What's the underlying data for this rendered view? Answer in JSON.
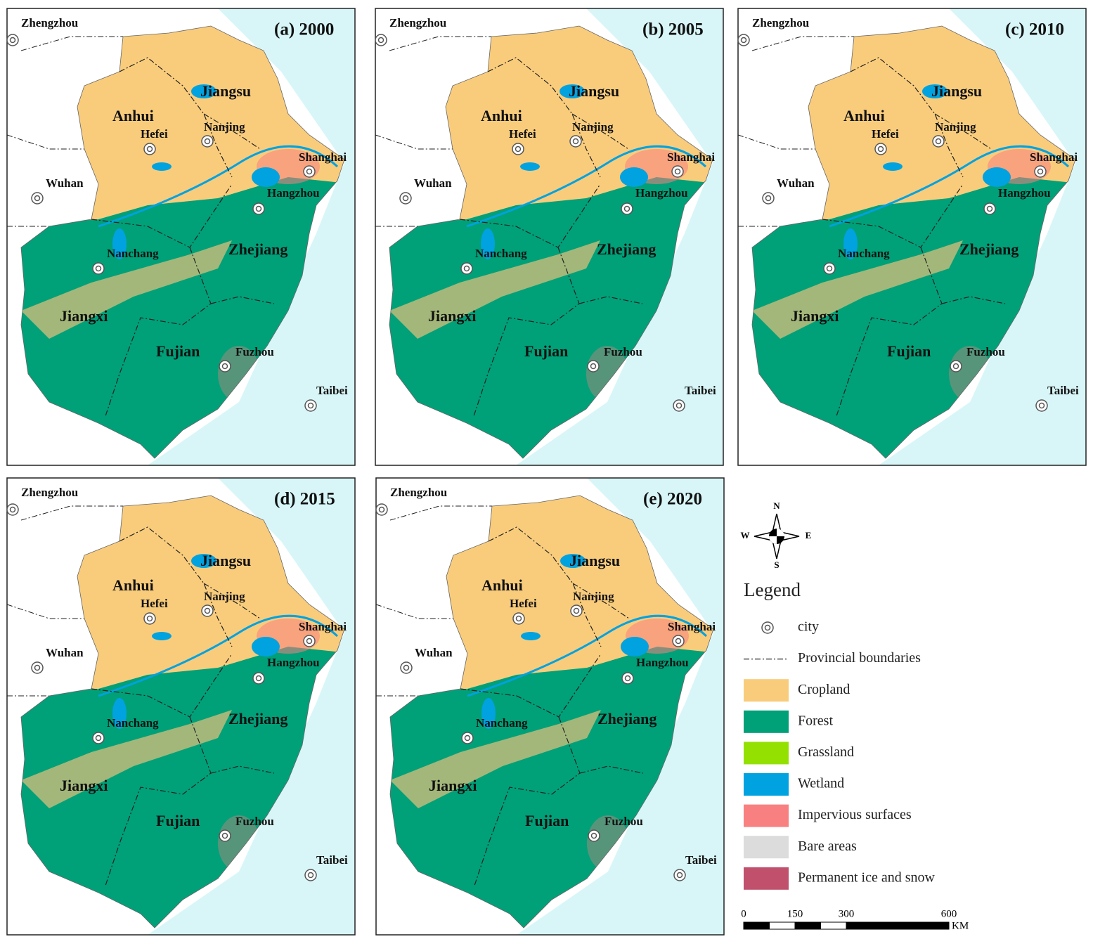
{
  "panels": [
    {
      "title": "(a) 2000"
    },
    {
      "title": "(b) 2005"
    },
    {
      "title": "(c) 2010"
    },
    {
      "title": "(d) 2015"
    },
    {
      "title": "(e) 2020"
    }
  ],
  "provinces": [
    "Jiangsu",
    "Anhui",
    "Zhejiang",
    "Jiangxi",
    "Fujian"
  ],
  "cities": [
    "Zhengzhou",
    "Hefei",
    "Nanjing",
    "Shanghai",
    "Wuhan",
    "Hangzhou",
    "Nanchang",
    "Fuzhou",
    "Taibei"
  ],
  "compass": [
    "N",
    "E",
    "S",
    "W"
  ],
  "legend": {
    "title": "Legend",
    "items": [
      {
        "label": "city"
      },
      {
        "label": "Provincial boundaries"
      },
      {
        "label": "Cropland",
        "color": "#f9cc7c"
      },
      {
        "label": "Forest",
        "color": "#00a078"
      },
      {
        "label": "Grassland",
        "color": "#94e000"
      },
      {
        "label": "Wetland",
        "color": "#00a2e0"
      },
      {
        "label": "Impervious surfaces",
        "color": "#f98080"
      },
      {
        "label": "Bare areas",
        "color": "#dcdcdc"
      },
      {
        "label": "Permanent ice and snow",
        "color": "#c0506c"
      }
    ]
  },
  "scale": {
    "ticks": [
      0,
      150,
      300,
      600
    ],
    "unit": "KM"
  }
}
